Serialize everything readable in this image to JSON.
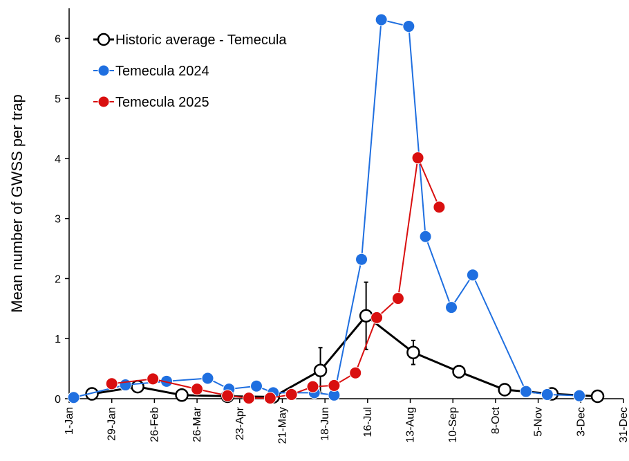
{
  "chart_data": {
    "type": "line",
    "y_label": "Mean number of GWSS per trap",
    "xlim": [
      1,
      365
    ],
    "ylim": [
      0,
      6.5
    ],
    "xticks": [
      {
        "value": 1,
        "label": "1-Jan"
      },
      {
        "value": 29,
        "label": "29-Jan"
      },
      {
        "value": 57,
        "label": "26-Feb"
      },
      {
        "value": 85,
        "label": "26-Mar"
      },
      {
        "value": 113,
        "label": "23-Apr"
      },
      {
        "value": 141,
        "label": "21-May"
      },
      {
        "value": 169,
        "label": "18-Jun"
      },
      {
        "value": 197,
        "label": "16-Jul"
      },
      {
        "value": 225,
        "label": "13-Aug"
      },
      {
        "value": 253,
        "label": "10-Sep"
      },
      {
        "value": 281,
        "label": "8-Oct"
      },
      {
        "value": 309,
        "label": "5-Nov"
      },
      {
        "value": 337,
        "label": "3-Dec"
      },
      {
        "value": 365,
        "label": "31-Dec"
      }
    ],
    "yticks": [
      0,
      1,
      2,
      3,
      4,
      5,
      6
    ],
    "series": [
      {
        "name": "Historic average - Temecula",
        "color": "#000000",
        "marker": "open",
        "x": [
          16,
          46,
          75,
          105,
          135,
          166,
          196,
          227,
          257,
          287,
          318,
          348
        ],
        "values": [
          0.08,
          0.2,
          0.06,
          0.04,
          0.03,
          0.47,
          1.38,
          0.77,
          0.45,
          0.15,
          0.08,
          0.04
        ],
        "errors": [
          0.02,
          0.03,
          0.02,
          0.01,
          0.01,
          0.38,
          0.56,
          0.2,
          0.1,
          0.03,
          0.02,
          0.01
        ]
      },
      {
        "name": "Temecula 2024",
        "color": "#1f6fe0",
        "marker": "filled",
        "x": [
          4,
          38,
          65,
          92,
          106,
          124,
          135,
          162,
          175,
          193,
          206,
          224,
          235,
          252,
          266,
          301,
          315,
          336
        ],
        "values": [
          0.02,
          0.23,
          0.29,
          0.34,
          0.16,
          0.21,
          0.1,
          0.1,
          0.06,
          2.32,
          6.31,
          6.2,
          2.7,
          1.52,
          2.06,
          0.12,
          0.07,
          0.05
        ]
      },
      {
        "name": "Temecula 2025",
        "color": "#d90f0f",
        "marker": "filled",
        "x": [
          29,
          56,
          85,
          105,
          119,
          133,
          147,
          161,
          175,
          189,
          203,
          217,
          230,
          244
        ],
        "values": [
          0.25,
          0.33,
          0.16,
          0.05,
          0.01,
          0.01,
          0.07,
          0.2,
          0.22,
          0.43,
          1.35,
          1.67,
          4.01,
          3.19
        ]
      }
    ]
  }
}
